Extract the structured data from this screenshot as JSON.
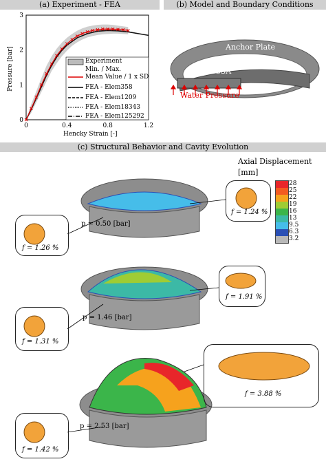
{
  "panels": {
    "a": "(a) Experiment - FEA",
    "b": "(b) Model and Boundary Conditions",
    "c": "(c) Structural Behavior and Cavity Evolution"
  },
  "chart_data": {
    "type": "line",
    "xlabel": "Hencky Strain [-]",
    "ylabel": "Pressure [bar]",
    "xlim": [
      0,
      1.2
    ],
    "ylim": [
      0,
      3
    ],
    "xticks": [
      "0",
      "0.4",
      "0.8",
      "1.2"
    ],
    "yticks": [
      "0",
      "1",
      "2",
      "3"
    ],
    "legend": [
      "Experiment",
      "Min. / Max.",
      "Mean Value / 1 x SD",
      "FEA - Elem358",
      "FEA - Elem1209",
      "FEA - Elem18343",
      "FEA - Elem125292"
    ],
    "series": [
      {
        "name": "Mean Value / 1 x SD",
        "x": [
          0,
          0.05,
          0.1,
          0.15,
          0.2,
          0.25,
          0.3,
          0.35,
          0.4,
          0.45,
          0.5,
          0.55,
          0.6,
          0.65,
          0.7,
          0.75,
          0.8,
          0.85,
          0.9,
          0.95,
          1.0
        ],
        "y": [
          0,
          0.32,
          0.65,
          1.0,
          1.32,
          1.6,
          1.84,
          2.03,
          2.18,
          2.3,
          2.4,
          2.47,
          2.52,
          2.56,
          2.58,
          2.6,
          2.6,
          2.6,
          2.59,
          2.58,
          2.56
        ]
      },
      {
        "name": "FEA",
        "x": [
          0,
          0.05,
          0.1,
          0.15,
          0.2,
          0.25,
          0.3,
          0.35,
          0.4,
          0.5,
          0.6,
          0.7,
          0.8,
          0.9,
          1.0,
          1.1,
          1.2
        ],
        "y": [
          0,
          0.3,
          0.62,
          0.95,
          1.28,
          1.56,
          1.8,
          1.99,
          2.14,
          2.35,
          2.47,
          2.54,
          2.56,
          2.55,
          2.52,
          2.47,
          2.42
        ]
      }
    ],
    "band_lo": [
      0,
      0.2,
      0.5,
      0.8,
      1.1,
      1.4,
      1.62,
      1.82,
      1.98,
      2.12,
      2.22,
      2.3,
      2.36,
      2.4,
      2.43,
      2.45,
      2.46,
      2.47,
      2.47,
      2.46,
      2.45
    ],
    "band_hi": [
      0,
      0.45,
      0.82,
      1.2,
      1.55,
      1.82,
      2.04,
      2.21,
      2.35,
      2.46,
      2.55,
      2.62,
      2.67,
      2.7,
      2.72,
      2.73,
      2.73,
      2.72,
      2.7,
      2.68,
      2.66
    ]
  },
  "model": {
    "anchor": "Anchor Plate",
    "tssa": "TSSA",
    "water": "Water Pressure"
  },
  "cavity": {
    "legend_title": "Axial Displacement",
    "legend_unit": "[mm]",
    "legend_values": [
      "28",
      "25",
      "22",
      "19",
      "16",
      "13",
      "9.5",
      "6.3",
      "3.2"
    ],
    "legend_colors": [
      "#e8262a",
      "#f35b20",
      "#f6a21d",
      "#9fcc34",
      "#3bb54a",
      "#3cb9a6",
      "#46bde9",
      "#2a4fb5",
      "#b8b8b8"
    ],
    "states": [
      {
        "p": "p = 0.50 [bar]",
        "f_left": "f = 1.26 %",
        "f_right": "f = 1.24 %"
      },
      {
        "p": "p = 1.46 [bar]",
        "f_left": "f = 1.31 %",
        "f_right": "f = 1.91 %"
      },
      {
        "p": "p = 2.53 [bar]",
        "f_left": "f = 1.42 %",
        "f_right": "f = 3.88 %"
      }
    ]
  }
}
